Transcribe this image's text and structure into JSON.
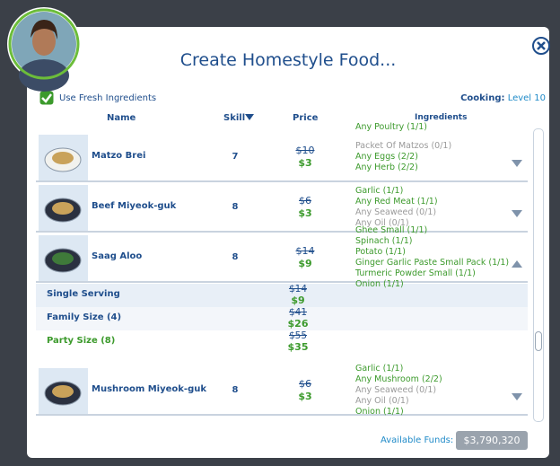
{
  "dialog": {
    "title": "Create Homestyle Food...",
    "fresh_ingredients": "Use Fresh Ingredients",
    "skill_label": "Cooking:",
    "skill_level": "Level 10",
    "columns": [
      "Name",
      "Skill",
      "Price",
      "Ingredients"
    ],
    "clipped_ingredients": [
      {
        "text": "Any Poultry (1/1)",
        "color": "#3c9a2c"
      }
    ],
    "recipes": [
      {
        "name": "Matzo Brei",
        "skill": 7,
        "price_old": "$10",
        "price": "$3",
        "expanded": false,
        "ingredients": [
          {
            "text": "Packet Of Matzos (0/1)",
            "color": "#9a9a9a"
          },
          {
            "text": "Any Eggs (2/2)",
            "color": "#3c9a2c"
          },
          {
            "text": "Any Herb (2/2)",
            "color": "#3c9a2c"
          }
        ]
      },
      {
        "name": "Beef Miyeok-guk",
        "skill": 8,
        "price_old": "$6",
        "price": "$3",
        "expanded": false,
        "ingredients": [
          {
            "text": "Garlic (1/1)",
            "color": "#3c9a2c"
          },
          {
            "text": "Any Red Meat (1/1)",
            "color": "#3c9a2c"
          },
          {
            "text": "Any Seaweed (0/1)",
            "color": "#9a9a9a"
          },
          {
            "text": "Any Oil (0/1)",
            "color": "#9a9a9a"
          }
        ]
      },
      {
        "name": "Saag Aloo",
        "skill": 8,
        "price_old": "$14",
        "price": "$9",
        "expanded": true,
        "ingredients": [
          {
            "text": "Ghee Small (1/1)",
            "color": "#3c9a2c"
          },
          {
            "text": "Spinach (1/1)",
            "color": "#3c9a2c"
          },
          {
            "text": "Potato (1/1)",
            "color": "#3c9a2c"
          },
          {
            "text": "Ginger Garlic Paste Small Pack (1/1)",
            "color": "#3c9a2c"
          },
          {
            "text": "Turmeric Powder Small (1/1)",
            "color": "#3c9a2c"
          },
          {
            "text": "Onion (1/1)",
            "color": "#3c9a2c"
          }
        ],
        "servings": [
          {
            "name": "Single Serving",
            "price_old": "$14",
            "price": "$9",
            "color": "#1f4e8c"
          },
          {
            "name": "Family Size (4)",
            "price_old": "$41",
            "price": "$26",
            "color": "#1f4e8c"
          },
          {
            "name": "Party Size (8)",
            "price_old": "$55",
            "price": "$35",
            "color": "#3c9a2c"
          }
        ]
      },
      {
        "name": "Mushroom Miyeok-guk",
        "skill": 8,
        "price_old": "$6",
        "price": "$3",
        "expanded": false,
        "ingredients": [
          {
            "text": "Garlic (1/1)",
            "color": "#3c9a2c"
          },
          {
            "text": "Any Mushroom (2/2)",
            "color": "#3c9a2c"
          },
          {
            "text": "Any Seaweed (0/1)",
            "color": "#9a9a9a"
          },
          {
            "text": "Any Oil (0/1)",
            "color": "#9a9a9a"
          },
          {
            "text": "Onion (1/1)",
            "color": "#3c9a2c"
          }
        ]
      }
    ],
    "funds_label": "Available Funds:",
    "funds": "$3,790,320"
  }
}
